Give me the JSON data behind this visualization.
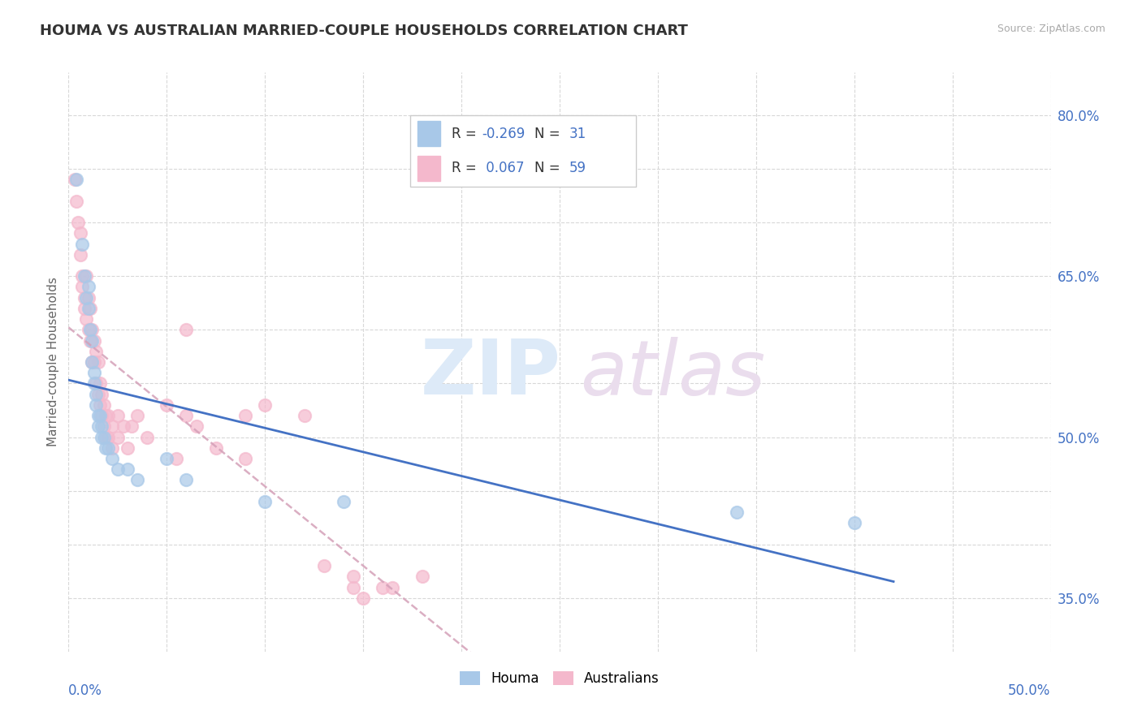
{
  "title": "HOUMA VS AUSTRALIAN MARRIED-COUPLE HOUSEHOLDS CORRELATION CHART",
  "source": "Source: ZipAtlas.com",
  "ylabel": "Married-couple Households",
  "xlim": [
    0.0,
    0.5
  ],
  "ylim": [
    0.3,
    0.84
  ],
  "x_ticks": [
    0.0,
    0.05,
    0.1,
    0.15,
    0.2,
    0.25,
    0.3,
    0.35,
    0.4,
    0.45,
    0.5
  ],
  "y_ticks": [
    0.35,
    0.4,
    0.45,
    0.5,
    0.55,
    0.6,
    0.65,
    0.7,
    0.75,
    0.8
  ],
  "y_tick_labels": [
    "35.0%",
    "",
    "",
    "50.0%",
    "",
    "",
    "65.0%",
    "",
    "",
    "80.0%"
  ],
  "houma_color": "#a8c8e8",
  "australians_color": "#f4b8cc",
  "houma_line_color": "#4472c4",
  "australians_line_color": "#d4a0b8",
  "label_color": "#4472c4",
  "grid_color": "#d8d8d8",
  "legend_R_houma": "-0.269",
  "legend_N_houma": "31",
  "legend_R_australians": "0.067",
  "legend_N_australians": "59",
  "houma_points": [
    [
      0.004,
      0.74
    ],
    [
      0.007,
      0.68
    ],
    [
      0.008,
      0.65
    ],
    [
      0.009,
      0.63
    ],
    [
      0.01,
      0.64
    ],
    [
      0.01,
      0.62
    ],
    [
      0.011,
      0.6
    ],
    [
      0.012,
      0.59
    ],
    [
      0.012,
      0.57
    ],
    [
      0.013,
      0.56
    ],
    [
      0.013,
      0.55
    ],
    [
      0.014,
      0.54
    ],
    [
      0.014,
      0.53
    ],
    [
      0.015,
      0.52
    ],
    [
      0.015,
      0.51
    ],
    [
      0.016,
      0.52
    ],
    [
      0.017,
      0.51
    ],
    [
      0.017,
      0.5
    ],
    [
      0.018,
      0.5
    ],
    [
      0.019,
      0.49
    ],
    [
      0.02,
      0.49
    ],
    [
      0.022,
      0.48
    ],
    [
      0.025,
      0.47
    ],
    [
      0.03,
      0.47
    ],
    [
      0.035,
      0.46
    ],
    [
      0.05,
      0.48
    ],
    [
      0.06,
      0.46
    ],
    [
      0.1,
      0.44
    ],
    [
      0.14,
      0.44
    ],
    [
      0.34,
      0.43
    ],
    [
      0.4,
      0.42
    ]
  ],
  "australians_points": [
    [
      0.003,
      0.74
    ],
    [
      0.004,
      0.72
    ],
    [
      0.005,
      0.7
    ],
    [
      0.006,
      0.69
    ],
    [
      0.006,
      0.67
    ],
    [
      0.007,
      0.65
    ],
    [
      0.007,
      0.64
    ],
    [
      0.008,
      0.63
    ],
    [
      0.008,
      0.62
    ],
    [
      0.009,
      0.65
    ],
    [
      0.009,
      0.61
    ],
    [
      0.01,
      0.63
    ],
    [
      0.01,
      0.6
    ],
    [
      0.011,
      0.62
    ],
    [
      0.011,
      0.59
    ],
    [
      0.012,
      0.6
    ],
    [
      0.012,
      0.57
    ],
    [
      0.013,
      0.59
    ],
    [
      0.013,
      0.57
    ],
    [
      0.014,
      0.58
    ],
    [
      0.014,
      0.55
    ],
    [
      0.015,
      0.57
    ],
    [
      0.015,
      0.54
    ],
    [
      0.016,
      0.55
    ],
    [
      0.016,
      0.53
    ],
    [
      0.017,
      0.54
    ],
    [
      0.017,
      0.52
    ],
    [
      0.018,
      0.53
    ],
    [
      0.018,
      0.51
    ],
    [
      0.019,
      0.52
    ],
    [
      0.019,
      0.5
    ],
    [
      0.02,
      0.52
    ],
    [
      0.02,
      0.5
    ],
    [
      0.022,
      0.51
    ],
    [
      0.022,
      0.49
    ],
    [
      0.025,
      0.52
    ],
    [
      0.025,
      0.5
    ],
    [
      0.028,
      0.51
    ],
    [
      0.03,
      0.49
    ],
    [
      0.032,
      0.51
    ],
    [
      0.035,
      0.52
    ],
    [
      0.04,
      0.5
    ],
    [
      0.05,
      0.53
    ],
    [
      0.055,
      0.48
    ],
    [
      0.06,
      0.52
    ],
    [
      0.065,
      0.51
    ],
    [
      0.075,
      0.49
    ],
    [
      0.09,
      0.52
    ],
    [
      0.1,
      0.53
    ],
    [
      0.12,
      0.52
    ],
    [
      0.13,
      0.38
    ],
    [
      0.145,
      0.37
    ],
    [
      0.145,
      0.36
    ],
    [
      0.15,
      0.35
    ],
    [
      0.16,
      0.36
    ],
    [
      0.165,
      0.36
    ],
    [
      0.18,
      0.37
    ],
    [
      0.06,
      0.6
    ],
    [
      0.09,
      0.48
    ]
  ]
}
